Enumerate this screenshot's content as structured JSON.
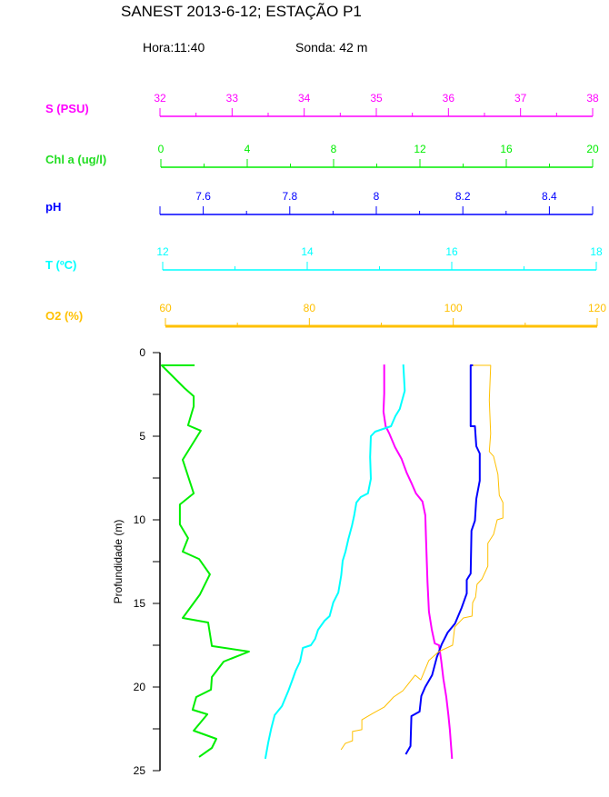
{
  "header": {
    "title": "SANEST 2013-6-12; ESTAÇÃO P1",
    "hora": "Hora:11:40",
    "sonda": "Sonda: 42 m"
  },
  "chart_data": {
    "type": "line",
    "title": "SANEST 2013-6-12; ESTAÇÃO P1",
    "ylabel": "Profundidade (m)",
    "ylim": [
      0,
      25
    ],
    "y_inverted": true,
    "y_ticks": [
      0,
      5,
      10,
      15,
      20,
      25
    ],
    "grid": false,
    "axes": [
      {
        "key": "S",
        "label": "S (PSU)",
        "color": "#ff00ff",
        "range": [
          32,
          38
        ],
        "ticks": [
          32,
          33,
          34,
          35,
          36,
          37,
          38
        ],
        "minor": 0.5,
        "labelDecimals": 0,
        "points": [
          [
            35.11,
            0.71
          ],
          [
            35.11,
            2.45
          ],
          [
            35.1,
            3.53
          ],
          [
            35.13,
            4.4
          ],
          [
            35.18,
            4.84
          ],
          [
            35.26,
            5.65
          ],
          [
            35.35,
            6.36
          ],
          [
            35.42,
            7.17
          ],
          [
            35.49,
            7.83
          ],
          [
            35.55,
            8.42
          ],
          [
            35.64,
            8.91
          ],
          [
            35.68,
            9.73
          ],
          [
            35.69,
            11.14
          ],
          [
            35.71,
            13.7
          ],
          [
            35.73,
            15.49
          ],
          [
            35.77,
            16.58
          ],
          [
            35.81,
            17.39
          ],
          [
            35.87,
            17.5
          ],
          [
            35.9,
            18.42
          ],
          [
            35.93,
            19.51
          ],
          [
            35.97,
            20.6
          ],
          [
            36.0,
            21.68
          ],
          [
            36.02,
            22.55
          ],
          [
            36.05,
            24.29
          ]
        ]
      },
      {
        "key": "Chl",
        "label": "Chl a (ug/l)",
        "color": "#00ee00",
        "range": [
          0,
          20
        ],
        "ticks": [
          0,
          4,
          8,
          12,
          16,
          20
        ],
        "minor": 2,
        "labelDecimals": 0,
        "points": [
          [
            1.56,
            0.76
          ],
          [
            0.04,
            0.76
          ],
          [
            1.09,
            2.12
          ],
          [
            1.52,
            2.61
          ],
          [
            1.52,
            3.21
          ],
          [
            1.26,
            4.35
          ],
          [
            1.85,
            4.67
          ],
          [
            1.01,
            6.41
          ],
          [
            1.52,
            8.42
          ],
          [
            0.88,
            9.08
          ],
          [
            0.88,
            10.27
          ],
          [
            1.26,
            11.09
          ],
          [
            1.01,
            11.9
          ],
          [
            1.77,
            12.34
          ],
          [
            2.27,
            13.26
          ],
          [
            1.81,
            14.46
          ],
          [
            1.01,
            15.87
          ],
          [
            2.19,
            16.14
          ],
          [
            2.36,
            17.55
          ],
          [
            4.08,
            17.88
          ],
          [
            2.91,
            18.48
          ],
          [
            2.36,
            19.4
          ],
          [
            2.32,
            20.16
          ],
          [
            1.64,
            20.6
          ],
          [
            1.47,
            21.36
          ],
          [
            2.15,
            21.63
          ],
          [
            1.52,
            22.61
          ],
          [
            2.57,
            23.1
          ],
          [
            2.36,
            23.64
          ],
          [
            1.77,
            24.18
          ]
        ]
      },
      {
        "key": "pH",
        "label": "pH",
        "color": "#0000ff",
        "range": [
          7.5,
          8.5
        ],
        "ticks": [
          7.6,
          7.8,
          8,
          8.2,
          8.4
        ],
        "minor": 0.1,
        "labelDecimals": 1,
        "points": [
          [
            8.224,
            0.76
          ],
          [
            8.218,
            0.76
          ],
          [
            8.218,
            4.4
          ],
          [
            8.228,
            4.4
          ],
          [
            8.231,
            5.6
          ],
          [
            8.239,
            6.03
          ],
          [
            8.239,
            7.66
          ],
          [
            8.231,
            8.75
          ],
          [
            8.228,
            10.05
          ],
          [
            8.22,
            10.65
          ],
          [
            8.218,
            13.21
          ],
          [
            8.209,
            13.59
          ],
          [
            8.209,
            14.4
          ],
          [
            8.197,
            15.27
          ],
          [
            8.182,
            16.2
          ],
          [
            8.165,
            16.74
          ],
          [
            8.151,
            17.45
          ],
          [
            8.14,
            18.21
          ],
          [
            8.129,
            19.29
          ],
          [
            8.113,
            20.0
          ],
          [
            8.104,
            20.54
          ],
          [
            8.1,
            21.47
          ],
          [
            8.081,
            21.74
          ],
          [
            8.079,
            23.53
          ],
          [
            8.068,
            24.02
          ]
        ]
      },
      {
        "key": "T",
        "label": "T (ºC)",
        "color": "#00ffff",
        "range": [
          12,
          18
        ],
        "ticks": [
          12,
          14,
          16,
          18
        ],
        "minor": 1,
        "labelDecimals": 0,
        "points": [
          [
            15.33,
            0.71
          ],
          [
            15.35,
            2.28
          ],
          [
            15.28,
            3.37
          ],
          [
            15.22,
            3.8
          ],
          [
            15.16,
            4.4
          ],
          [
            14.94,
            4.73
          ],
          [
            14.88,
            5.0
          ],
          [
            14.87,
            6.25
          ],
          [
            14.88,
            7.55
          ],
          [
            14.84,
            8.42
          ],
          [
            14.74,
            8.64
          ],
          [
            14.68,
            8.97
          ],
          [
            14.65,
            9.73
          ],
          [
            14.62,
            10.33
          ],
          [
            14.57,
            11.14
          ],
          [
            14.53,
            11.9
          ],
          [
            14.49,
            12.45
          ],
          [
            14.47,
            13.32
          ],
          [
            14.43,
            14.35
          ],
          [
            14.36,
            14.95
          ],
          [
            14.31,
            15.76
          ],
          [
            14.24,
            16.03
          ],
          [
            14.15,
            16.58
          ],
          [
            14.11,
            17.12
          ],
          [
            14.05,
            17.5
          ],
          [
            13.94,
            17.66
          ],
          [
            13.9,
            18.48
          ],
          [
            13.84,
            19.02
          ],
          [
            13.8,
            19.51
          ],
          [
            13.74,
            20.22
          ],
          [
            13.65,
            21.14
          ],
          [
            13.55,
            21.68
          ],
          [
            13.5,
            22.5
          ],
          [
            13.46,
            23.32
          ],
          [
            13.42,
            24.29
          ]
        ]
      },
      {
        "key": "O2",
        "label": "O2 (%)",
        "color": "#ffc000",
        "range": [
          60,
          120
        ],
        "ticks": [
          60,
          80,
          100,
          120
        ],
        "minor": 10,
        "labelDecimals": 0,
        "points": [
          [
            102.7,
            0.76
          ],
          [
            105.2,
            0.76
          ],
          [
            105.2,
            0.82
          ],
          [
            105.0,
            2.83
          ],
          [
            105.2,
            4.84
          ],
          [
            105.0,
            5.92
          ],
          [
            105.6,
            6.2
          ],
          [
            106.2,
            7.28
          ],
          [
            106.4,
            8.53
          ],
          [
            106.9,
            8.97
          ],
          [
            106.9,
            9.89
          ],
          [
            106.1,
            10.0
          ],
          [
            105.6,
            10.87
          ],
          [
            104.8,
            11.41
          ],
          [
            104.8,
            12.77
          ],
          [
            104.0,
            13.53
          ],
          [
            103.3,
            13.86
          ],
          [
            103.1,
            14.62
          ],
          [
            102.7,
            14.95
          ],
          [
            102.6,
            15.76
          ],
          [
            101.4,
            15.87
          ],
          [
            100.2,
            16.41
          ],
          [
            99.9,
            17.5
          ],
          [
            98.0,
            17.88
          ],
          [
            96.6,
            18.42
          ],
          [
            95.5,
            19.57
          ],
          [
            94.7,
            19.29
          ],
          [
            93.7,
            19.84
          ],
          [
            93.0,
            20.22
          ],
          [
            91.7,
            20.6
          ],
          [
            90.4,
            21.2
          ],
          [
            88.8,
            21.58
          ],
          [
            87.3,
            21.96
          ],
          [
            87.3,
            22.55
          ],
          [
            86.0,
            22.66
          ],
          [
            86.0,
            23.21
          ],
          [
            85.0,
            23.37
          ],
          [
            84.4,
            23.75
          ]
        ]
      }
    ]
  }
}
